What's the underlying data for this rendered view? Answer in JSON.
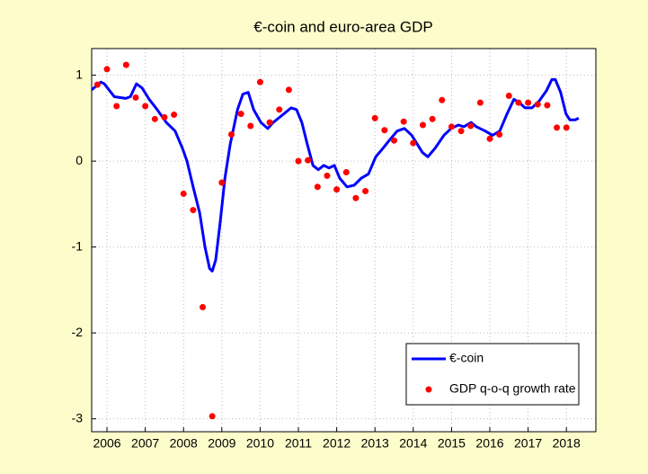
{
  "chart_data": {
    "type": "line_scatter",
    "title": "€-coin and euro-area GDP",
    "xlim": [
      2006.1,
      2019.27
    ],
    "ylim": [
      -3.15,
      1.31
    ],
    "xticks": [
      {
        "value": 2006.5,
        "label": "2006"
      },
      {
        "value": 2007.5,
        "label": "2007"
      },
      {
        "value": 2008.5,
        "label": "2008"
      },
      {
        "value": 2009.5,
        "label": "2009"
      },
      {
        "value": 2010.5,
        "label": "2010"
      },
      {
        "value": 2011.5,
        "label": "2011"
      },
      {
        "value": 2012.5,
        "label": "2012"
      },
      {
        "value": 2013.5,
        "label": "2013"
      },
      {
        "value": 2014.5,
        "label": "2014"
      },
      {
        "value": 2015.5,
        "label": "2015"
      },
      {
        "value": 2016.5,
        "label": "2016"
      },
      {
        "value": 2017.5,
        "label": "2017"
      },
      {
        "value": 2018.5,
        "label": "2018"
      }
    ],
    "yticks": [
      1,
      0,
      -1,
      -2,
      -3
    ],
    "grid": true,
    "legend": "lower right",
    "series": [
      {
        "name": "€-coin",
        "color": "#0000ff",
        "kind": "line",
        "x": [
          2006.1,
          2006.34,
          2006.43,
          2006.69,
          2006.99,
          2007.11,
          2007.27,
          2007.42,
          2007.6,
          2007.81,
          2008.05,
          2008.28,
          2008.47,
          2008.59,
          2008.75,
          2008.92,
          2009.06,
          2009.18,
          2009.25,
          2009.34,
          2009.46,
          2009.58,
          2009.72,
          2009.91,
          2010.05,
          2010.19,
          2010.33,
          2010.52,
          2010.7,
          2010.84,
          2010.98,
          2011.12,
          2011.31,
          2011.45,
          2011.59,
          2011.73,
          2011.88,
          2012.02,
          2012.16,
          2012.3,
          2012.44,
          2012.58,
          2012.77,
          2012.96,
          2013.14,
          2013.33,
          2013.52,
          2013.71,
          2013.89,
          2014.08,
          2014.27,
          2014.46,
          2014.74,
          2014.88,
          2015.07,
          2015.3,
          2015.49,
          2015.68,
          2015.82,
          2016.01,
          2016.15,
          2016.38,
          2016.57,
          2016.76,
          2016.95,
          2017.13,
          2017.27,
          2017.42,
          2017.6,
          2017.79,
          2017.98,
          2018.12,
          2018.21,
          2018.35,
          2018.49,
          2018.59,
          2018.73,
          2018.82
        ],
        "values": [
          0.83,
          0.92,
          0.9,
          0.75,
          0.73,
          0.75,
          0.9,
          0.85,
          0.72,
          0.6,
          0.45,
          0.35,
          0.15,
          0.0,
          -0.3,
          -0.6,
          -1.0,
          -1.25,
          -1.28,
          -1.15,
          -0.7,
          -0.2,
          0.2,
          0.6,
          0.78,
          0.8,
          0.6,
          0.45,
          0.38,
          0.45,
          0.5,
          0.55,
          0.62,
          0.6,
          0.45,
          0.2,
          -0.05,
          -0.1,
          -0.05,
          -0.08,
          -0.05,
          -0.2,
          -0.3,
          -0.28,
          -0.2,
          -0.15,
          0.05,
          0.15,
          0.25,
          0.35,
          0.38,
          0.3,
          0.1,
          0.05,
          0.15,
          0.3,
          0.38,
          0.42,
          0.4,
          0.45,
          0.4,
          0.35,
          0.3,
          0.35,
          0.55,
          0.72,
          0.68,
          0.62,
          0.62,
          0.7,
          0.82,
          0.95,
          0.95,
          0.8,
          0.55,
          0.48,
          0.48,
          0.5
        ]
      },
      {
        "name": "GDP q-o-q growth rate",
        "color": "#ff0000",
        "kind": "scatter",
        "x": [
          2006.25,
          2006.5,
          2006.75,
          2007.0,
          2007.25,
          2007.5,
          2007.75,
          2008.0,
          2008.25,
          2008.5,
          2008.75,
          2009.0,
          2009.25,
          2009.5,
          2009.75,
          2010.0,
          2010.25,
          2010.5,
          2010.75,
          2011.0,
          2011.25,
          2011.5,
          2011.75,
          2012.0,
          2012.25,
          2012.5,
          2012.75,
          2013.0,
          2013.25,
          2013.5,
          2013.75,
          2014.0,
          2014.25,
          2014.5,
          2014.75,
          2015.0,
          2015.25,
          2015.5,
          2015.75,
          2016.0,
          2016.25,
          2016.5,
          2016.75,
          2017.0,
          2017.25,
          2017.5,
          2017.75,
          2018.0,
          2018.25,
          2018.5
        ],
        "values": [
          0.89,
          1.07,
          0.64,
          1.12,
          0.74,
          0.64,
          0.49,
          0.51,
          0.54,
          -0.38,
          -0.57,
          -1.7,
          -2.97,
          -0.25,
          0.31,
          0.55,
          0.41,
          0.92,
          0.45,
          0.6,
          0.83,
          0.0,
          0.01,
          -0.3,
          -0.17,
          -0.33,
          -0.13,
          -0.43,
          -0.35,
          0.5,
          0.36,
          0.24,
          0.46,
          0.21,
          0.42,
          0.49,
          0.71,
          0.4,
          0.35,
          0.41,
          0.68,
          0.26,
          0.31,
          0.76,
          0.68,
          0.68,
          0.66,
          0.65,
          0.39,
          0.39
        ]
      }
    ]
  }
}
